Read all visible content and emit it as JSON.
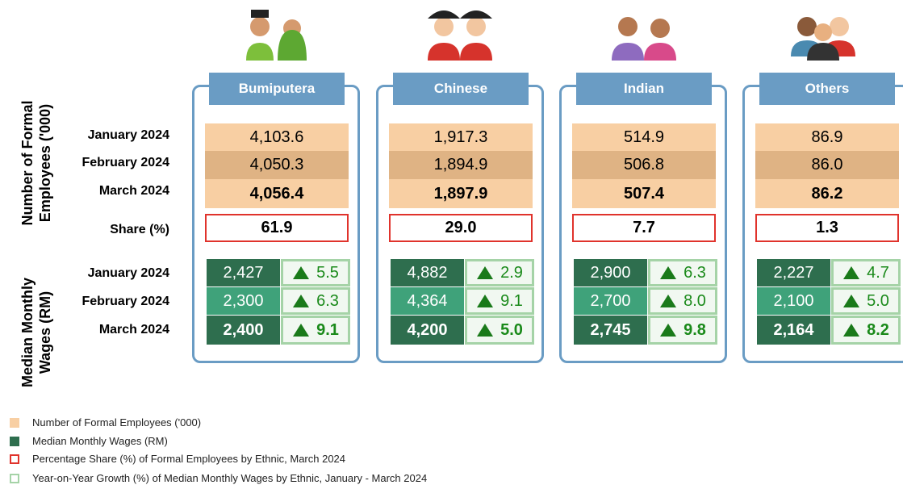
{
  "section_labels": [
    "Number of Formal Employees ('000)",
    "Median Monthly Wages (RM)"
  ],
  "employee_row_labels": [
    "January 2024",
    "February 2024",
    "March 2024"
  ],
  "share_label": "Share (%)",
  "wage_row_labels": [
    "January 2024",
    "February 2024",
    "March 2024"
  ],
  "groups": [
    {
      "name": "Bumiputera",
      "employees": [
        "4,103.6",
        "4,050.3",
        "4,056.4"
      ],
      "share": "61.9",
      "wages": [
        "2,427",
        "2,300",
        "2,400"
      ],
      "growth": [
        "5.5",
        "6.3",
        "9.1"
      ]
    },
    {
      "name": "Chinese",
      "employees": [
        "1,917.3",
        "1,894.9",
        "1,897.9"
      ],
      "share": "29.0",
      "wages": [
        "4,882",
        "4,364",
        "4,200"
      ],
      "growth": [
        "2.9",
        "9.1",
        "5.0"
      ]
    },
    {
      "name": "Indian",
      "employees": [
        "514.9",
        "506.8",
        "507.4"
      ],
      "share": "7.7",
      "wages": [
        "2,900",
        "2,700",
        "2,745"
      ],
      "growth": [
        "6.3",
        "8.0",
        "9.8"
      ]
    },
    {
      "name": "Others",
      "employees": [
        "86.9",
        "86.0",
        "86.2"
      ],
      "share": "1.3",
      "wages": [
        "2,227",
        "2,100",
        "2,164"
      ],
      "growth": [
        "4.7",
        "5.0",
        "8.2"
      ]
    }
  ],
  "legend": [
    "Number of Formal Employees ('000)",
    "Median Monthly Wages (RM)",
    "Percentage Share (%) of Formal Employees by Ethnic, March 2024",
    "Year-on-Year Growth (%) of Median Monthly Wages by Ethnic, January - March 2024"
  ]
}
